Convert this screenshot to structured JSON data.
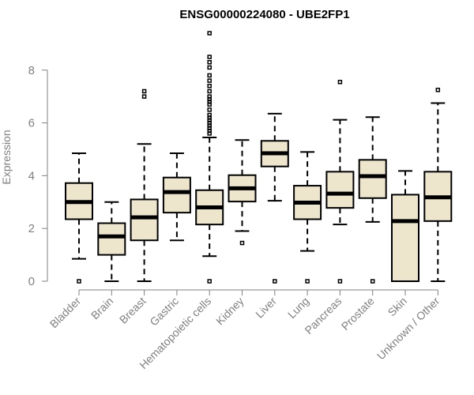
{
  "chart_data": {
    "type": "boxplot",
    "title": "ENSG00000224080 - UBE2FP1",
    "ylabel": "Expression",
    "xlabel": "",
    "ylim": [
      0,
      9.4
    ],
    "yticks": [
      0,
      2,
      4,
      6,
      8
    ],
    "grid": false,
    "colors": {
      "box_fill": "#ede6cc",
      "stroke": "#000000",
      "axis": "#808080",
      "label": "#808080"
    },
    "categories": [
      "Bladder",
      "Brain",
      "Breast",
      "Gastric",
      "Hematopoietic cells",
      "Kidney",
      "Liver",
      "Lung",
      "Pancreas",
      "Prostate",
      "Skin",
      "Unknown / Other"
    ],
    "boxes": [
      {
        "whisker_low": 0.85,
        "q1": 2.35,
        "median": 3.0,
        "q3": 3.72,
        "whisker_high": 4.85,
        "outliers": [
          0
        ]
      },
      {
        "whisker_low": 0.0,
        "q1": 1.0,
        "median": 1.7,
        "q3": 2.2,
        "whisker_high": 3.0,
        "outliers": []
      },
      {
        "whisker_low": 0.0,
        "q1": 1.55,
        "median": 2.42,
        "q3": 3.1,
        "whisker_high": 5.2,
        "outliers": [
          7.0,
          7.2
        ]
      },
      {
        "whisker_low": 1.55,
        "q1": 2.6,
        "median": 3.38,
        "q3": 3.93,
        "whisker_high": 4.85,
        "outliers": []
      },
      {
        "whisker_low": 0.95,
        "q1": 2.15,
        "median": 2.8,
        "q3": 3.45,
        "whisker_high": 5.45,
        "outliers": [
          0,
          5.6,
          5.7,
          5.8,
          5.9,
          6.0,
          6.1,
          6.2,
          6.3,
          6.5,
          6.7,
          6.8,
          6.9,
          7.0,
          7.2,
          7.4,
          7.6,
          7.8,
          8.1,
          8.3,
          8.5,
          9.4
        ]
      },
      {
        "whisker_low": 1.9,
        "q1": 3.02,
        "median": 3.52,
        "q3": 4.02,
        "whisker_high": 5.35,
        "outliers": [
          1.45
        ]
      },
      {
        "whisker_low": 3.05,
        "q1": 4.35,
        "median": 4.85,
        "q3": 5.32,
        "whisker_high": 6.35,
        "outliers": [
          0
        ]
      },
      {
        "whisker_low": 1.15,
        "q1": 2.35,
        "median": 2.98,
        "q3": 3.62,
        "whisker_high": 4.9,
        "outliers": [
          0
        ]
      },
      {
        "whisker_low": 2.15,
        "q1": 2.78,
        "median": 3.32,
        "q3": 4.15,
        "whisker_high": 6.12,
        "outliers": [
          0,
          7.55
        ]
      },
      {
        "whisker_low": 2.25,
        "q1": 3.15,
        "median": 3.98,
        "q3": 4.6,
        "whisker_high": 6.22,
        "outliers": [
          0
        ]
      },
      {
        "whisker_low": 0.0,
        "q1": 0.0,
        "median": 2.28,
        "q3": 3.28,
        "whisker_high": 4.18,
        "outliers": []
      },
      {
        "whisker_low": 0.0,
        "q1": 2.28,
        "median": 3.18,
        "q3": 4.15,
        "whisker_high": 6.75,
        "outliers": [
          7.25
        ]
      }
    ]
  }
}
